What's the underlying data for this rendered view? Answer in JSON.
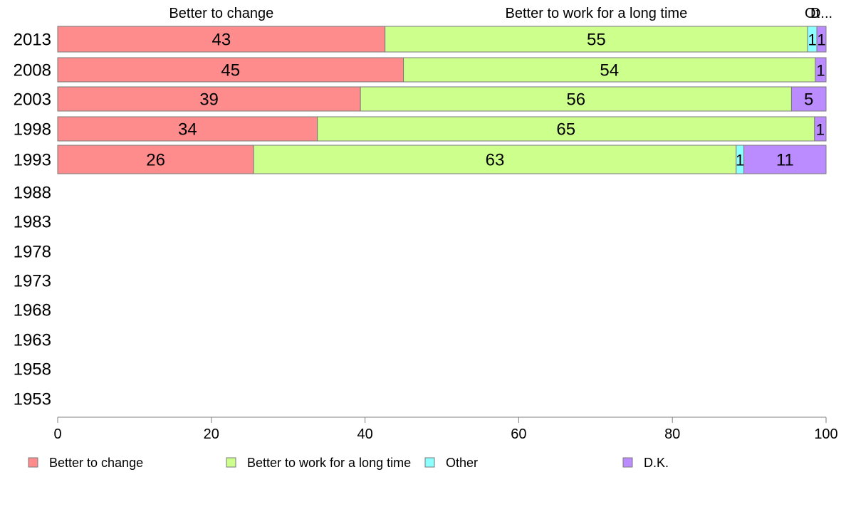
{
  "chart_data": {
    "type": "bar",
    "orientation": "horizontal",
    "stacked": true,
    "title": "",
    "xlabel": "",
    "ylabel": "",
    "xlim": [
      0,
      100
    ],
    "x_ticks": [
      "0",
      "20",
      "40",
      "60",
      "80",
      "100"
    ],
    "categories": [
      "2013",
      "2008",
      "2003",
      "1998",
      "1993",
      "1988",
      "1983",
      "1978",
      "1973",
      "1968",
      "1963",
      "1958",
      "1953"
    ],
    "series": [
      {
        "name": "Better to change",
        "color": "#ff8c8c",
        "values": [
          43,
          45,
          39,
          34,
          26,
          null,
          null,
          null,
          null,
          null,
          null,
          null,
          null
        ],
        "plot_values": [
          42.6,
          45.0,
          39.4,
          33.8,
          25.5,
          null,
          null,
          null,
          null,
          null,
          null,
          null,
          null
        ]
      },
      {
        "name": "Better to work for a long time",
        "color": "#ccff8c",
        "values": [
          55,
          54,
          56,
          65,
          63,
          null,
          null,
          null,
          null,
          null,
          null,
          null,
          null
        ],
        "plot_values": [
          55.0,
          53.6,
          56.1,
          64.7,
          62.8,
          null,
          null,
          null,
          null,
          null,
          null,
          null,
          null
        ]
      },
      {
        "name": "Other",
        "color": "#8cffff",
        "values": [
          1,
          null,
          null,
          null,
          1,
          null,
          null,
          null,
          null,
          null,
          null,
          null,
          null
        ],
        "plot_values": [
          1.2,
          0,
          0,
          0,
          1.0,
          null,
          null,
          null,
          null,
          null,
          null,
          null,
          null
        ]
      },
      {
        "name": "D.K.",
        "color": "#bb8cff",
        "values": [
          1,
          1,
          5,
          1,
          11,
          null,
          null,
          null,
          null,
          null,
          null,
          null,
          null
        ],
        "plot_values": [
          1.2,
          1.4,
          4.5,
          1.5,
          10.7,
          null,
          null,
          null,
          null,
          null,
          null,
          null,
          null
        ]
      }
    ],
    "top_labels": [
      "Better to change",
      "Better to work for a long time",
      "Ot",
      "D..."
    ],
    "legend_position": "bottom",
    "grid": false
  }
}
